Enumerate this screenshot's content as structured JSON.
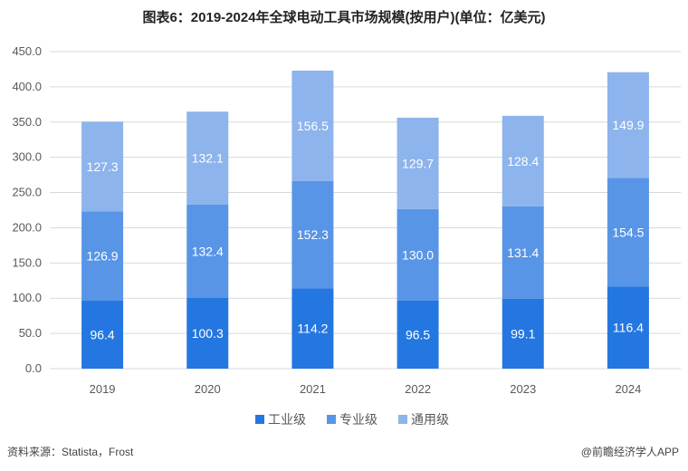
{
  "header": {
    "title": "图表6：2019-2024年全球电动工具市场规模(按用户)(单位：亿美元)"
  },
  "footer": {
    "source": "资料来源：Statista，Frost",
    "brand": "@前瞻经济学人APP"
  },
  "colors": {
    "series": [
      "#2477e0",
      "#5895e6",
      "#8db4ec"
    ],
    "grid": "#d9d9d9"
  },
  "chart_data": {
    "type": "bar",
    "stacked": true,
    "categories": [
      "2019",
      "2020",
      "2021",
      "2022",
      "2023",
      "2024"
    ],
    "series": [
      {
        "name": "工业级",
        "values": [
          96.4,
          100.3,
          114.2,
          96.5,
          99.1,
          116.4
        ]
      },
      {
        "name": "专业级",
        "values": [
          126.9,
          132.4,
          152.3,
          130.0,
          131.4,
          154.5
        ]
      },
      {
        "name": "通用级",
        "values": [
          127.3,
          132.1,
          156.5,
          129.7,
          128.4,
          149.9
        ]
      }
    ],
    "yticks": [
      "0.0",
      "50.0",
      "100.0",
      "150.0",
      "200.0",
      "250.0",
      "300.0",
      "350.0",
      "400.0",
      "450.0"
    ],
    "ylim": [
      0,
      450
    ],
    "grid": true,
    "legend_position": "bottom"
  }
}
